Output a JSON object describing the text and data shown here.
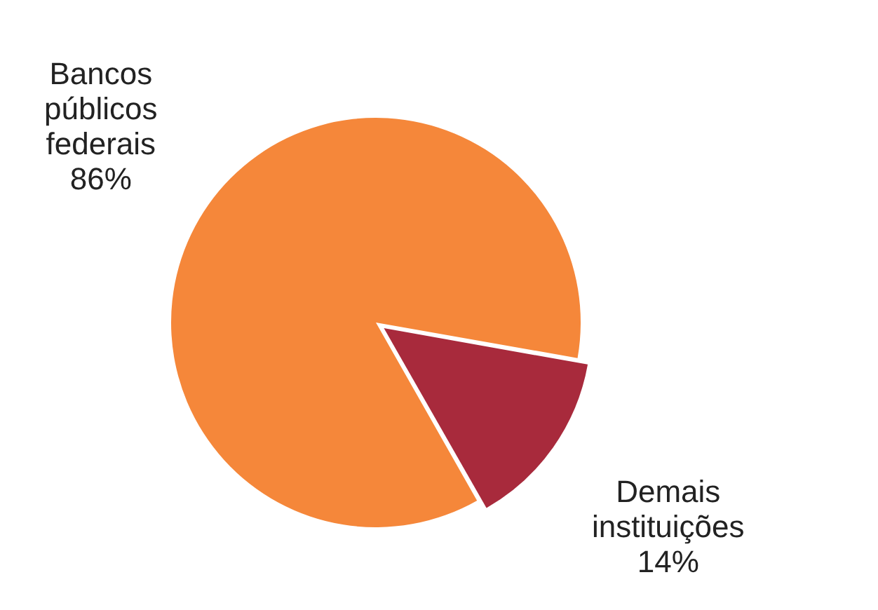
{
  "chart_data": {
    "type": "pie",
    "categories": [
      "Bancos públicos federais",
      "Demais instituições"
    ],
    "values": [
      86,
      14
    ],
    "colors": [
      "#f5873a",
      "#a82a3c"
    ],
    "value_labels": [
      "86%",
      "14%"
    ],
    "legend": false
  }
}
